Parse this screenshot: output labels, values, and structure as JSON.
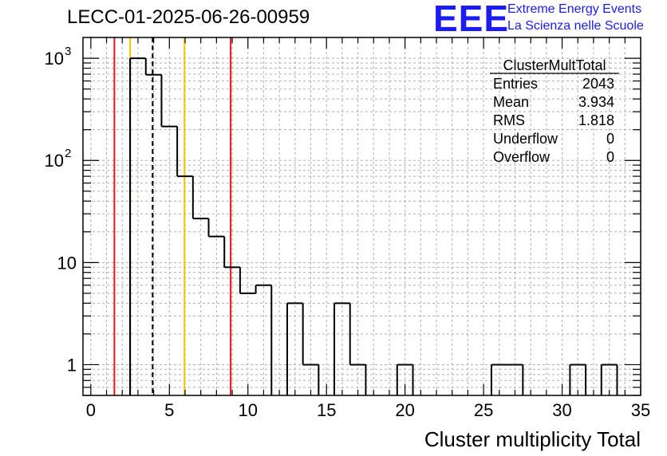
{
  "header": {
    "title": "LECC-01-2025-06-26-00959",
    "logo_text": "EEE",
    "logo_line1": "Extreme Energy Events",
    "logo_line2": "La Scienza nelle Scuole"
  },
  "colors": {
    "histogram": "#000000",
    "red_line": "#e8141c",
    "yellow_line": "#f5c400",
    "logo": "#1c1cf0",
    "grid": "#b0b0b0"
  },
  "stats_box": {
    "name": "ClusterMultTotal",
    "rows": [
      {
        "label": "Entries",
        "value": "2043"
      },
      {
        "label": "Mean",
        "value": "3.934"
      },
      {
        "label": "RMS",
        "value": "1.818"
      },
      {
        "label": "Underflow",
        "value": "0"
      },
      {
        "label": "Overflow",
        "value": "0"
      }
    ]
  },
  "chart_data": {
    "type": "histogram",
    "xlabel": "Cluster multiplicity Total",
    "ylabel": "",
    "xlim": [
      -0.5,
      35
    ],
    "ylim": [
      0.5,
      1600
    ],
    "log_y": true,
    "grid": true,
    "x_ticks": [
      0,
      5,
      10,
      15,
      20,
      25,
      30,
      35
    ],
    "y_ticks": [
      {
        "value": 1,
        "label": "1"
      },
      {
        "value": 10,
        "label": "10"
      },
      {
        "value": 100,
        "label": "10",
        "exp": "2"
      },
      {
        "value": 1000,
        "label": "10",
        "exp": "3"
      }
    ],
    "bin_width": 1,
    "bins": [
      {
        "x0": 2.5,
        "value": 1000
      },
      {
        "x0": 3.5,
        "value": 690
      },
      {
        "x0": 4.5,
        "value": 215
      },
      {
        "x0": 5.5,
        "value": 70
      },
      {
        "x0": 6.5,
        "value": 27
      },
      {
        "x0": 7.5,
        "value": 18
      },
      {
        "x0": 8.5,
        "value": 9
      },
      {
        "x0": 9.5,
        "value": 5
      },
      {
        "x0": 10.5,
        "value": 6
      },
      {
        "x0": 12.5,
        "value": 4
      },
      {
        "x0": 13.5,
        "value": 1
      },
      {
        "x0": 15.5,
        "value": 4
      },
      {
        "x0": 16.5,
        "value": 1
      },
      {
        "x0": 19.5,
        "value": 1
      },
      {
        "x0": 25.5,
        "value": 1
      },
      {
        "x0": 26.5,
        "value": 1
      },
      {
        "x0": 30.5,
        "value": 1
      },
      {
        "x0": 32.5,
        "value": 1
      }
    ],
    "vertical_lines": [
      {
        "x": 1.5,
        "color": "red",
        "style": "solid"
      },
      {
        "x": 2.5,
        "color": "yellow",
        "style": "solid"
      },
      {
        "x": 3.934,
        "color": "black",
        "style": "dashed"
      },
      {
        "x": 5.96,
        "color": "yellow",
        "style": "solid"
      },
      {
        "x": 8.9,
        "color": "red",
        "style": "solid"
      }
    ]
  }
}
